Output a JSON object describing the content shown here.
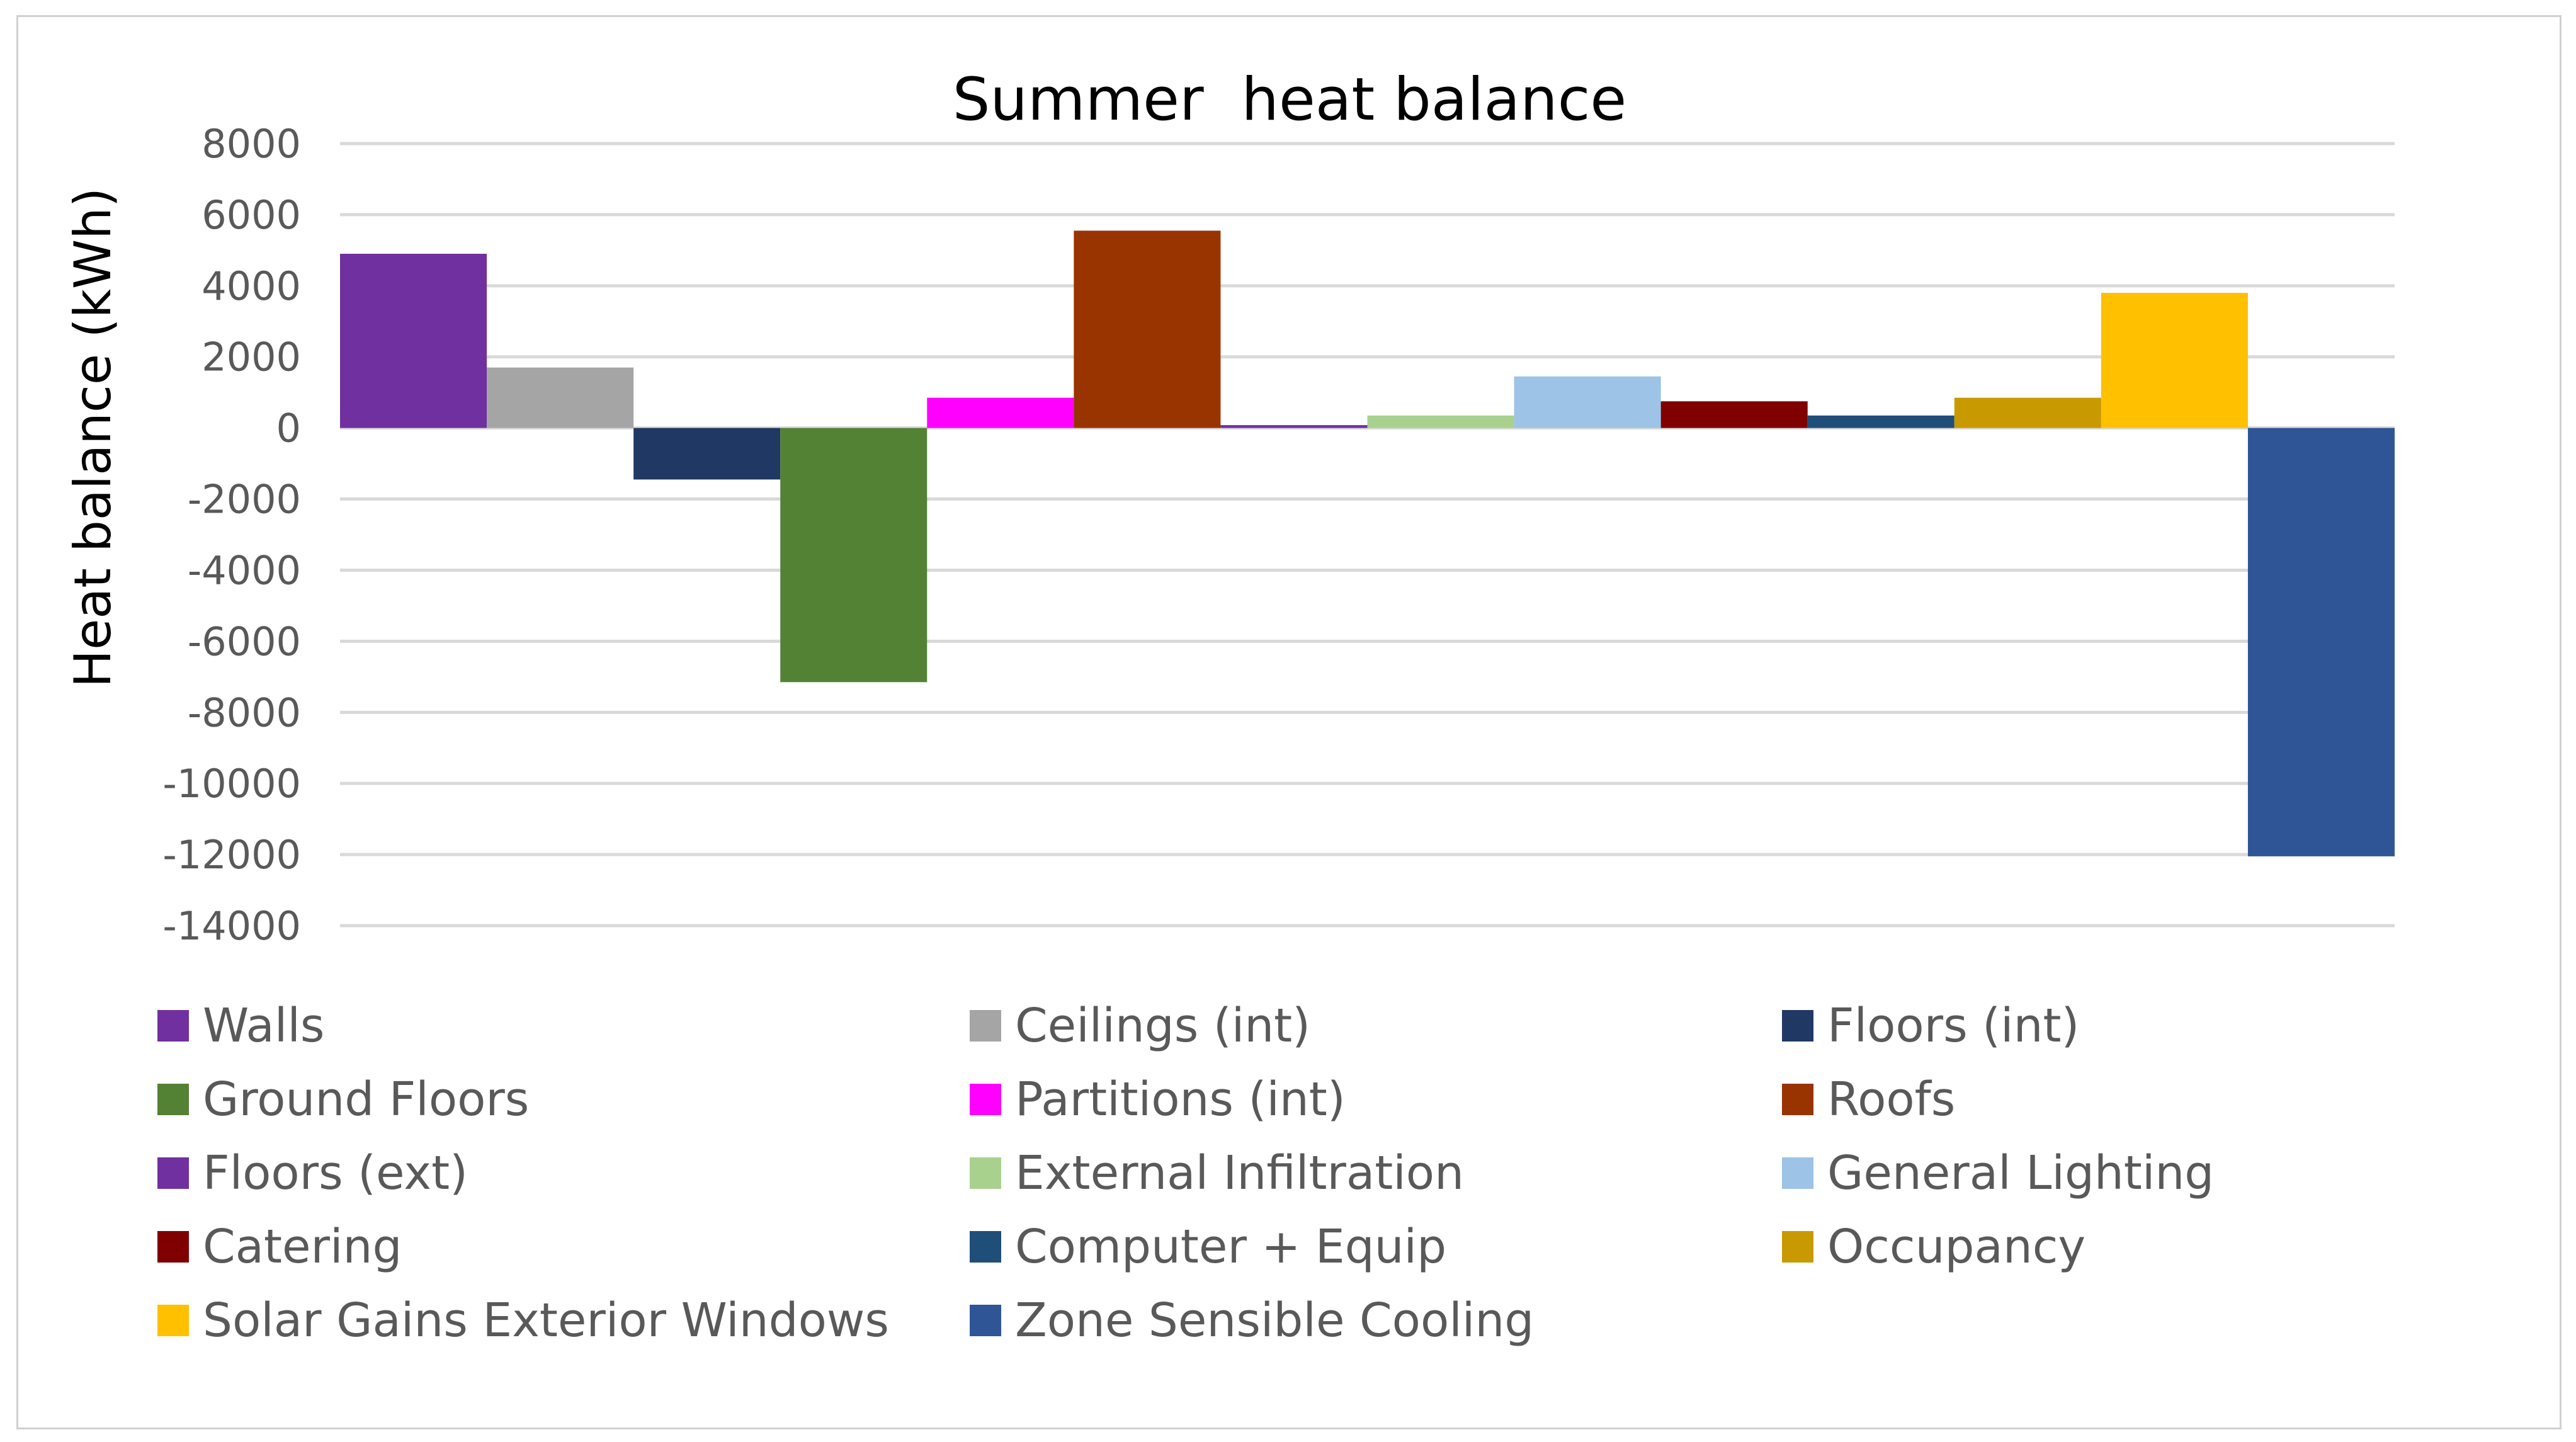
{
  "chart_data": {
    "type": "bar",
    "title": "Summer  heat balance",
    "xlabel": "",
    "ylabel": "Heat balance (kWh)",
    "ylim": [
      -14000,
      8000
    ],
    "yticks": [
      8000,
      6000,
      4000,
      2000,
      0,
      -2000,
      -4000,
      -6000,
      -8000,
      -10000,
      -12000,
      -14000
    ],
    "grid": true,
    "legend_position": "bottom",
    "series": [
      {
        "name": "Walls",
        "value": 4900,
        "color": "#7030a0"
      },
      {
        "name": "Ceilings (int)",
        "value": 1700,
        "color": "#a5a5a5"
      },
      {
        "name": "Floors (int)",
        "value": -1450,
        "color": "#203864"
      },
      {
        "name": "Ground Floors",
        "value": -7150,
        "color": "#548235"
      },
      {
        "name": "Partitions (int)",
        "value": 850,
        "color": "#ff00ff"
      },
      {
        "name": "Roofs",
        "value": 5550,
        "color": "#993300"
      },
      {
        "name": "Floors (ext)",
        "value": 80,
        "color": "#7030a0"
      },
      {
        "name": "External Infiltration",
        "value": 350,
        "color": "#a9d18e"
      },
      {
        "name": "General Lighting",
        "value": 1450,
        "color": "#9dc3e6"
      },
      {
        "name": "Catering",
        "value": 750,
        "color": "#800000"
      },
      {
        "name": "Computer + Equip",
        "value": 350,
        "color": "#1f4e79"
      },
      {
        "name": "Occupancy",
        "value": 850,
        "color": "#c89900"
      },
      {
        "name": "Solar Gains Exterior Windows",
        "value": 3800,
        "color": "#ffc000"
      },
      {
        "name": "Zone Sensible Cooling",
        "value": -12050,
        "color": "#2f5597"
      }
    ]
  }
}
